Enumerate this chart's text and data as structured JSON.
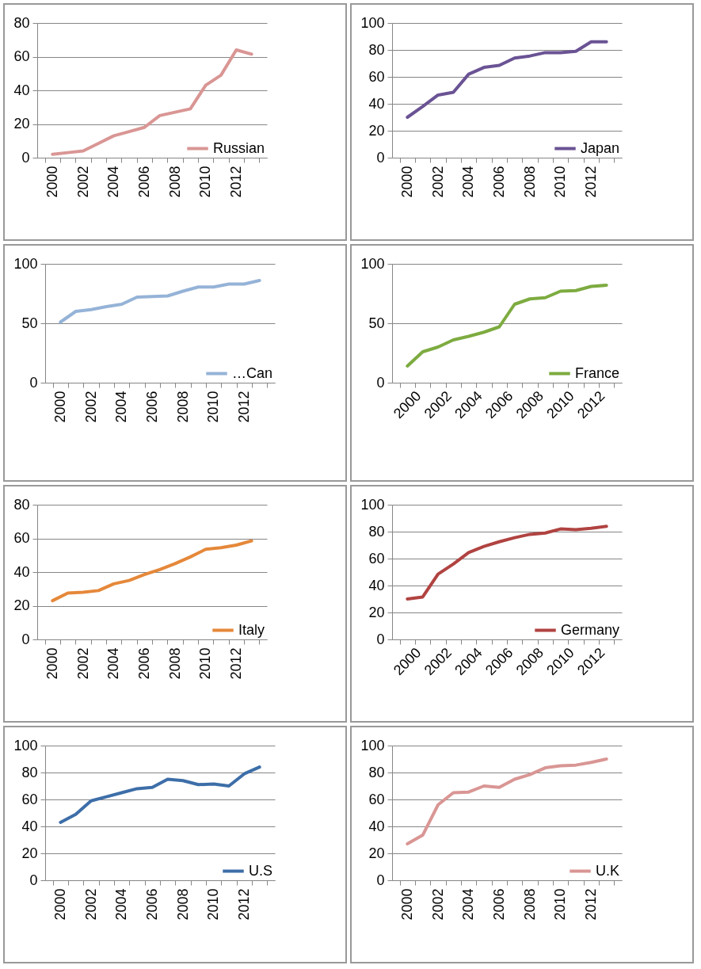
{
  "chart_data": [
    {
      "type": "line",
      "categories": [
        "2000",
        null,
        "2002",
        null,
        "2004",
        null,
        "2006",
        null,
        "2008",
        null,
        "2010",
        null,
        "2012",
        null
      ],
      "ylim": [
        0,
        80
      ],
      "yticks": [
        0,
        20,
        40,
        60,
        80
      ],
      "grid": "y",
      "legend": "right",
      "series": [
        {
          "name": "Russian",
          "color": "#d99694",
          "values": [
            2,
            3,
            4,
            8.5,
            13,
            15.5,
            18,
            25,
            27,
            29,
            43,
            49,
            64,
            61.5
          ]
        }
      ]
    },
    {
      "type": "line",
      "categories": [
        "2000",
        null,
        "2002",
        null,
        "2004",
        null,
        "2006",
        null,
        "2008",
        null,
        "2010",
        null,
        "2012",
        null
      ],
      "ylim": [
        0,
        100
      ],
      "yticks": [
        0,
        20,
        40,
        60,
        80,
        100
      ],
      "grid": "y",
      "legend": "right",
      "series": [
        {
          "name": "Japan",
          "color": "#6a5394",
          "values": [
            30,
            38,
            46.5,
            48.5,
            62,
            67,
            68.5,
            74,
            75.5,
            78,
            78,
            79,
            86,
            86
          ]
        }
      ]
    },
    {
      "type": "line",
      "categories": [
        "2000",
        null,
        "2002",
        null,
        "2004",
        null,
        "2006",
        null,
        "2008",
        null,
        "2010",
        null,
        "2012",
        null
      ],
      "ylim": [
        0,
        100
      ],
      "yticks": [
        0,
        50,
        100
      ],
      "grid": "y",
      "legend": "right",
      "series": [
        {
          "name": "…Can",
          "color": "#95b3d7",
          "values": [
            51,
            60,
            61.5,
            64,
            66,
            72,
            72.5,
            73,
            77,
            80.5,
            80.5,
            83,
            83,
            86
          ]
        }
      ]
    },
    {
      "type": "line",
      "categories": [
        "2000",
        null,
        "2002",
        null,
        "2004",
        null,
        "2006",
        null,
        "2008",
        null,
        "2010",
        null,
        "2012",
        null
      ],
      "ylim": [
        0,
        100
      ],
      "yticks": [
        0,
        50,
        100
      ],
      "grid": "y",
      "legend": "right",
      "series": [
        {
          "name": "France",
          "color": "#7dab40",
          "values": [
            14,
            26,
            30,
            36,
            39,
            42.5,
            47,
            66,
            70.5,
            71.5,
            77,
            77.5,
            81,
            82
          ]
        }
      ]
    },
    {
      "type": "line",
      "categories": [
        "2000",
        null,
        "2002",
        null,
        "2004",
        null,
        "2006",
        null,
        "2008",
        null,
        "2010",
        null,
        "2012",
        null
      ],
      "ylim": [
        0,
        80
      ],
      "yticks": [
        0,
        20,
        40,
        60,
        80
      ],
      "grid": "y",
      "legend": "right",
      "series": [
        {
          "name": "Italy",
          "color": "#e5883a",
          "values": [
            23,
            27.5,
            28,
            29,
            33,
            35,
            38.5,
            41.5,
            45,
            49,
            53.5,
            54.5,
            56,
            58.5
          ]
        }
      ]
    },
    {
      "type": "line",
      "categories": [
        "2000",
        null,
        "2002",
        null,
        "2004",
        null,
        "2006",
        null,
        "2008",
        null,
        "2010",
        null,
        "2012",
        null
      ],
      "ylim": [
        0,
        100
      ],
      "yticks": [
        0,
        20,
        40,
        60,
        80,
        100
      ],
      "grid": "y",
      "legend": "right",
      "series": [
        {
          "name": "Germany",
          "color": "#b04341",
          "values": [
            30,
            31.5,
            48.5,
            56,
            64.5,
            69,
            72.5,
            75.5,
            78,
            79,
            82,
            81.5,
            82.5,
            84
          ]
        }
      ]
    },
    {
      "type": "line",
      "categories": [
        "2000",
        null,
        "2002",
        null,
        "2004",
        null,
        "2006",
        null,
        "2008",
        null,
        "2010",
        null,
        "2012",
        null
      ],
      "ylim": [
        0,
        100
      ],
      "yticks": [
        0,
        20,
        40,
        60,
        80,
        100
      ],
      "grid": "y",
      "legend": "right",
      "series": [
        {
          "name": "U.S",
          "color": "#3d6ea8",
          "values": [
            43,
            49,
            59,
            62,
            65,
            68,
            69,
            75,
            74,
            71,
            71.5,
            70,
            79,
            84
          ]
        }
      ]
    },
    {
      "type": "line",
      "categories": [
        "2000",
        null,
        "2002",
        null,
        "2004",
        null,
        "2006",
        null,
        "2008",
        null,
        "2010",
        null,
        "2012",
        null
      ],
      "ylim": [
        0,
        100
      ],
      "yticks": [
        0,
        20,
        40,
        60,
        80,
        100
      ],
      "grid": "y",
      "legend": "right",
      "series": [
        {
          "name": "U.K",
          "color": "#d99694",
          "values": [
            27,
            33.5,
            56,
            65,
            65.5,
            70,
            69,
            75,
            78.5,
            83.5,
            85,
            85.5,
            87.5,
            90
          ]
        }
      ]
    }
  ]
}
